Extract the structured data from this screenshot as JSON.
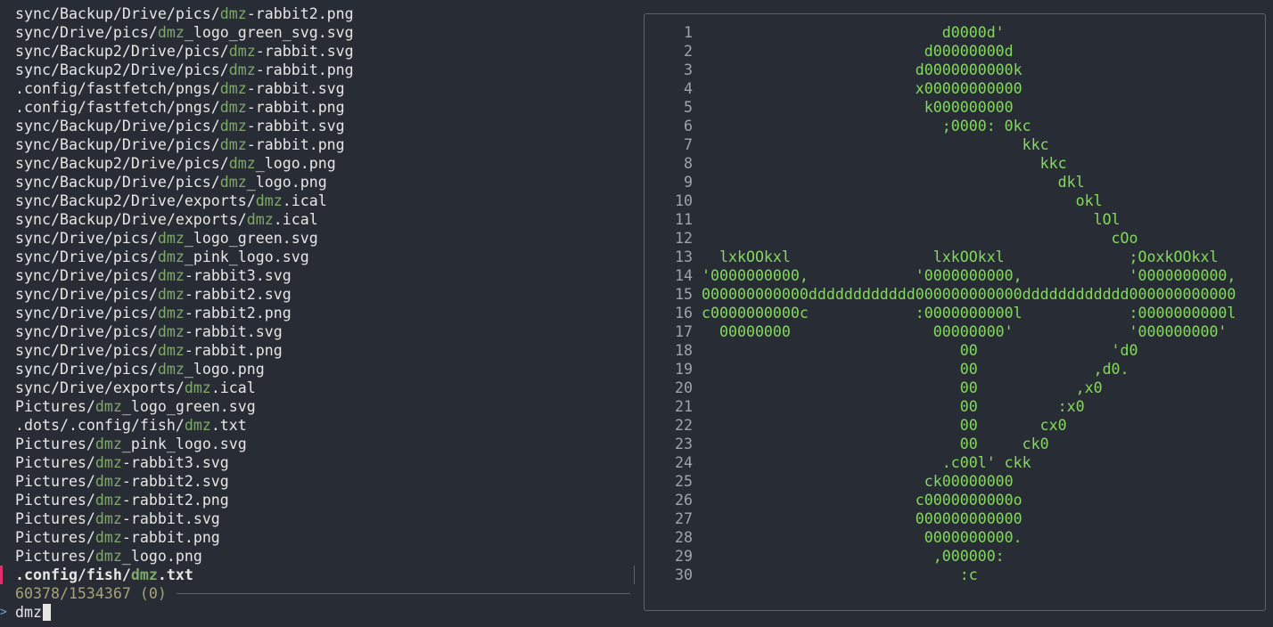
{
  "list": {
    "items": [
      [
        "sync/Backup/Drive/pics/",
        "dmz",
        "-rabbit2.png"
      ],
      [
        "sync/Drive/pics/",
        "dmz",
        "_logo_green_svg.svg"
      ],
      [
        "sync/Backup2/Drive/pics/",
        "dmz",
        "-rabbit.svg"
      ],
      [
        "sync/Backup2/Drive/pics/",
        "dmz",
        "-rabbit.png"
      ],
      [
        ".config/fastfetch/pngs/",
        "dmz",
        "-rabbit.svg"
      ],
      [
        ".config/fastfetch/pngs/",
        "dmz",
        "-rabbit.png"
      ],
      [
        "sync/Backup/Drive/pics/",
        "dmz",
        "-rabbit.svg"
      ],
      [
        "sync/Backup/Drive/pics/",
        "dmz",
        "-rabbit.png"
      ],
      [
        "sync/Backup2/Drive/pics/",
        "dmz",
        "_logo.png"
      ],
      [
        "sync/Backup/Drive/pics/",
        "dmz",
        "_logo.png"
      ],
      [
        "sync/Backup2/Drive/exports/",
        "dmz",
        ".ical"
      ],
      [
        "sync/Backup/Drive/exports/",
        "dmz",
        ".ical"
      ],
      [
        "sync/Drive/pics/",
        "dmz",
        "_logo_green.svg"
      ],
      [
        "sync/Drive/pics/",
        "dmz",
        "_pink_logo.svg"
      ],
      [
        "sync/Drive/pics/",
        "dmz",
        "-rabbit3.svg"
      ],
      [
        "sync/Drive/pics/",
        "dmz",
        "-rabbit2.svg"
      ],
      [
        "sync/Drive/pics/",
        "dmz",
        "-rabbit2.png"
      ],
      [
        "sync/Drive/pics/",
        "dmz",
        "-rabbit.svg"
      ],
      [
        "sync/Drive/pics/",
        "dmz",
        "-rabbit.png"
      ],
      [
        "sync/Drive/pics/",
        "dmz",
        "_logo.png"
      ],
      [
        "sync/Drive/exports/",
        "dmz",
        ".ical"
      ],
      [
        "Pictures/",
        "dmz",
        "_logo_green.svg"
      ],
      [
        ".dots/.config/fish/",
        "dmz",
        ".txt"
      ],
      [
        "Pictures/",
        "dmz",
        "_pink_logo.svg"
      ],
      [
        "Pictures/",
        "dmz",
        "-rabbit3.svg"
      ],
      [
        "Pictures/",
        "dmz",
        "-rabbit2.svg"
      ],
      [
        "Pictures/",
        "dmz",
        "-rabbit2.png"
      ],
      [
        "Pictures/",
        "dmz",
        "-rabbit.svg"
      ],
      [
        "Pictures/",
        "dmz",
        "-rabbit.png"
      ],
      [
        "Pictures/",
        "dmz",
        "_logo.png"
      ]
    ],
    "selected": [
      ".config/fish/",
      "dmz",
      ".txt"
    ],
    "count": "60378/1534367 (0)",
    "prompt": ">",
    "query": "dmz"
  },
  "preview": {
    "line_numbers": [
      "1",
      "2",
      "3",
      "4",
      "5",
      "6",
      "7",
      "8",
      "9",
      "10",
      "11",
      "12",
      "13",
      "14",
      "15",
      "16",
      "17",
      "18",
      "19",
      "20",
      "21",
      "22",
      "23",
      "24",
      "25",
      "26",
      "27",
      "28",
      "29",
      "30"
    ],
    "lines": [
      "                           d0000d'",
      "                         d00000000d",
      "                        d0000000000k",
      "                        x00000000000",
      "                         k000000000",
      "                           ;0000: 0kc",
      "                                    kkc",
      "                                      kkc",
      "                                        dkl",
      "                                          okl",
      "                                            lOl",
      "                                              cOo",
      "  lxkOOkxl                lxkOOkxl              ;OoxkOOkxl",
      "'0000000000,            '0000000000,            '0000000000,",
      "000000000000dddddddddddd000000000000dddddddddddd000000000000",
      "c0000000000c            :0000000000l            :0000000000l",
      "  00000000                00000000'             '000000000'",
      "                             00               'd0",
      "                             00             ,d0.",
      "                             00           ,x0",
      "                             00         :x0",
      "                             00       cx0",
      "                             00     ck0",
      "                           .c00l' ckk",
      "                         ck00000000",
      "                        c0000000000o",
      "                        000000000000",
      "                         0000000000.",
      "                          ,000000:",
      "                             :c"
    ]
  }
}
